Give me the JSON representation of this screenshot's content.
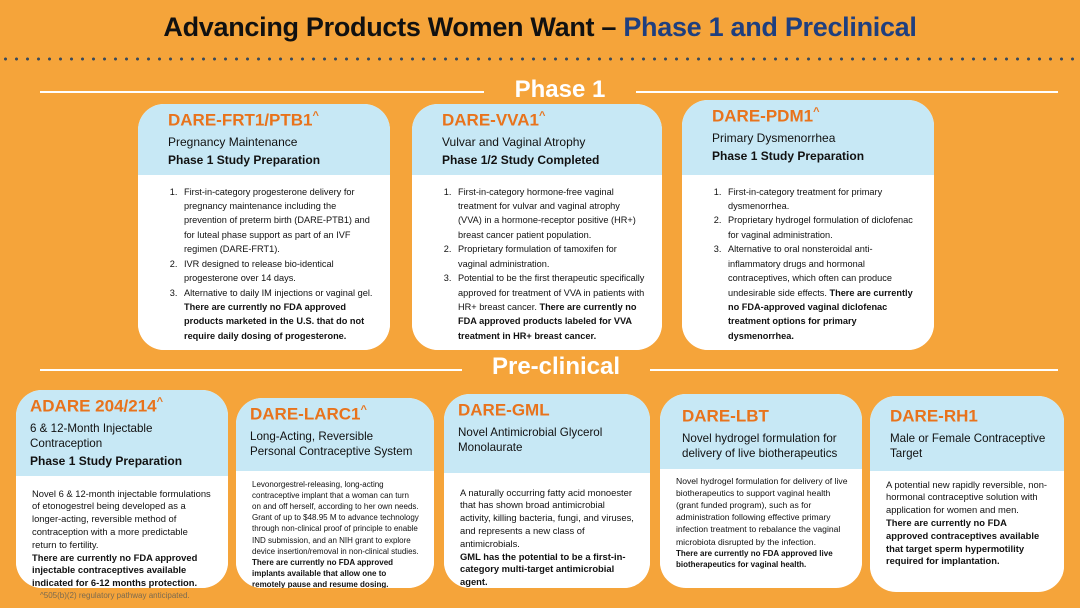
{
  "title": {
    "main": "Advancing Products Women Want – ",
    "highlight": "Phase 1 and Preclinical"
  },
  "sections": {
    "phase1": "Phase 1",
    "preclinical": "Pre-clinical"
  },
  "phase1_cards": [
    {
      "name": "DARE-FRT1/PTB1",
      "sup": "^",
      "subtitle": "Pregnancy Maintenance",
      "stage": "Phase 1 Study Preparation",
      "items": [
        "First-in-category progesterone delivery for pregnancy maintenance including the prevention of preterm birth (DARE-PTB1) and for luteal phase support as part of an IVF regimen (DARE-FRT1).",
        "IVR designed to release bio-identical progesterone over 14 days.",
        "Alternative to daily IM injections or vaginal gel. "
      ],
      "bold": "There are currently no FDA approved products marketed in the U.S. that do not require daily dosing of progesterone."
    },
    {
      "name": "DARE-VVA1",
      "sup": "^",
      "subtitle": "Vulvar and Vaginal Atrophy",
      "stage": "Phase 1/2 Study Completed",
      "items": [
        "First-in-category hormone-free vaginal treatment for vulvar and vaginal atrophy (VVA) in a hormone-receptor positive (HR+) breast cancer patient population.",
        "Proprietary formulation of tamoxifen for vaginal administration.",
        "Potential to be the first therapeutic specifically approved for treatment of VVA in patients with HR+ breast cancer. "
      ],
      "bold": "There are currently no FDA approved products labeled for VVA treatment in HR+ breast cancer."
    },
    {
      "name": "DARE-PDM1",
      "sup": "^",
      "subtitle": "Primary Dysmenorrhea",
      "stage": "Phase 1 Study Preparation",
      "items": [
        "First-in-category treatment for primary dysmenorrhea.",
        "Proprietary hydrogel formulation of diclofenac for vaginal administration.",
        "Alternative to oral nonsteroidal anti-inflammatory drugs and hormonal contraceptives, which often can produce undesirable side effects. "
      ],
      "bold": "There are currently no FDA-approved vaginal diclofenac treatment options for primary dysmenorrhea."
    }
  ],
  "preclinical_cards": [
    {
      "name": "ADARE 204/214",
      "sup": "^",
      "subtitle": "6 & 12-Month Injectable Contraception",
      "stage": "Phase 1 Study Preparation",
      "text": "Novel 6 & 12-month injectable formulations of etonogestrel being developed as a longer-acting, reversible method of contraception with a more predictable return to fertility.",
      "bold": "There are currently no FDA approved injectable contraceptives available indicated for 6-12 months protection."
    },
    {
      "name": "DARE-LARC1",
      "sup": "^",
      "subtitle": "Long-Acting, Reversible Personal Contraceptive System",
      "stage": "",
      "text": "Levonorgestrel-releasing, long-acting contraceptive implant that a woman can turn on and off herself, according to her own needs. Grant of up to $48.95 M to advance technology through non-clinical proof of principle to enable IND submission, and an NIH grant to explore device insertion/removal in non-clinical studies.",
      "bold": "There are currently no FDA approved implants available that allow one to remotely pause and resume dosing."
    },
    {
      "name": "DARE-GML",
      "sup": "",
      "subtitle": "Novel Antimicrobial Glycerol Monolaurate",
      "stage": "",
      "text": "A naturally occurring fatty acid monoester that has shown broad antimicrobial activity, killing bacteria, fungi, and viruses, and represents a new class of antimicrobials.",
      "bold": "GML has the potential to be a first-in-category multi-target antimicrobial agent."
    },
    {
      "name": "DARE-LBT",
      "sup": "",
      "subtitle": "Novel hydrogel formulation for delivery of  live biotherapeutics",
      "stage": "",
      "text": "Novel hydrogel formulation for delivery of live biotherapeutics to support vaginal health (grant funded program), such as for administration following effective primary infection treatment to rebalance the vaginal microbiota disrupted by the infection.",
      "bold": "There are currently no FDA approved live biotherapeutics for vaginal health."
    },
    {
      "name": "DARE-RH1",
      "sup": "",
      "subtitle": "Male or Female Contraceptive Target",
      "stage": "",
      "text": "A potential new rapidly reversible, non-hormonal contraceptive solution with application for women and men.",
      "bold": "There are currently no FDA approved contraceptives available that target sperm hypermotility required for implantation."
    }
  ],
  "footnote": "^505(b)(2) regulatory pathway anticipated.",
  "colors": {
    "background": "#F5A43A",
    "card_header": "#C7E8F5",
    "product_name": "#E8731C",
    "title_highlight": "#1F3F7F"
  }
}
